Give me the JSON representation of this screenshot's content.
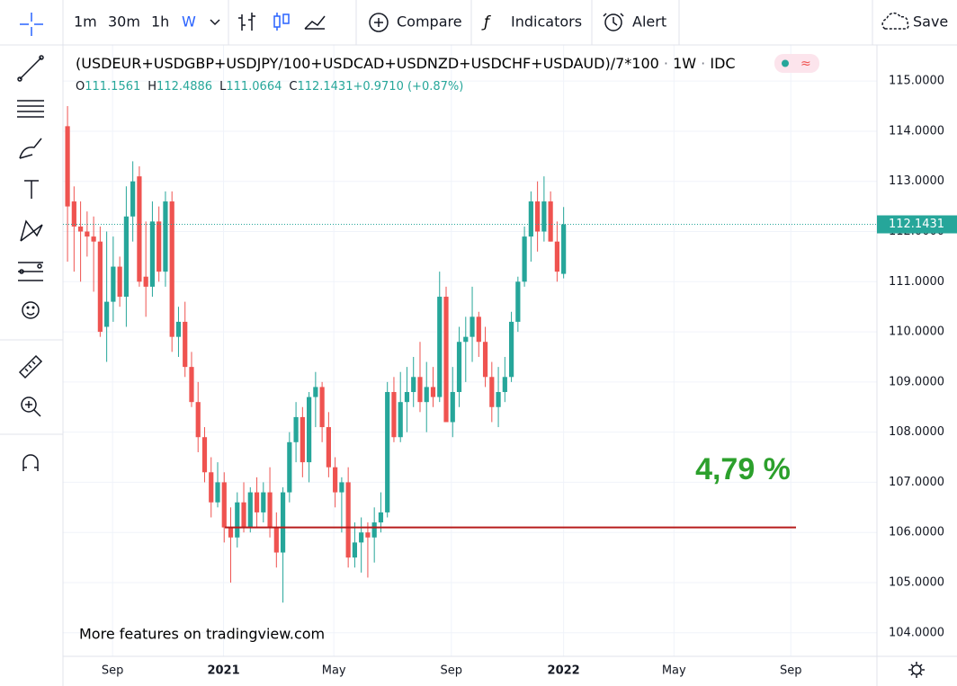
{
  "toolbar": {
    "intervals": [
      "1m",
      "30m",
      "1h",
      "W"
    ],
    "compare": "Compare",
    "indicators": "Indicators",
    "alert": "Alert",
    "save": "Save"
  },
  "watermark": "More features on tradingview.com",
  "chart_data": {
    "type": "candlestick",
    "title": "(USDEUR+USDGBP+USDJPY/100+USDCAD+USDNZD+USDCHF+USDAUD)/7*100",
    "interval": "1W",
    "source": "IDC",
    "legend": [
      {
        "key": "O",
        "text": "111.1561"
      },
      {
        "key": "H",
        "text": "112.4886"
      },
      {
        "key": "L",
        "text": "111.0664"
      },
      {
        "key": "C",
        "text": "112.1431"
      },
      {
        "key": "",
        "text": "+0.9710 (+0.87%)"
      }
    ],
    "up_color": "#26a69a",
    "down_color": "#ef5350",
    "open": [
      114.1,
      112.6,
      112.1,
      112.0,
      111.9,
      111.8,
      110.1,
      110.6,
      111.3,
      110.7,
      112.3,
      113.1,
      111.1,
      110.9,
      112.2,
      111.2,
      112.6,
      109.9,
      110.2,
      109.3,
      108.6,
      107.9,
      107.2,
      106.6,
      107.0,
      106.1,
      105.9,
      106.6,
      106.1,
      106.8,
      106.4,
      106.8,
      106.1,
      105.6,
      106.8,
      107.8,
      108.3,
      107.4,
      108.7,
      108.9,
      108.1,
      107.3,
      106.8,
      107.0,
      105.5,
      105.8,
      106.0,
      105.9,
      106.2,
      106.4,
      108.8,
      107.9,
      108.6,
      108.8,
      109.1,
      108.6,
      108.9,
      108.7,
      110.7,
      108.2,
      108.8,
      109.8,
      109.9,
      110.3,
      109.8,
      109.1,
      108.5,
      108.8,
      109.1,
      110.2,
      111.0,
      111.9,
      112.6,
      112.0,
      112.6,
      111.8,
      111.1561
    ],
    "high": [
      114.5,
      112.9,
      112.6,
      112.4,
      112.3,
      112.1,
      112.0,
      111.9,
      111.5,
      112.9,
      113.4,
      113.3,
      112.2,
      112.6,
      112.5,
      112.8,
      112.8,
      110.5,
      110.6,
      109.6,
      109.0,
      108.1,
      107.5,
      107.4,
      107.2,
      106.5,
      106.8,
      107.0,
      106.9,
      107.1,
      107.0,
      107.3,
      106.4,
      106.9,
      108.0,
      108.6,
      108.5,
      108.8,
      109.2,
      109.0,
      108.4,
      107.5,
      107.1,
      107.3,
      106.2,
      106.3,
      106.2,
      106.5,
      106.8,
      109.0,
      109.1,
      109.2,
      109.3,
      109.5,
      109.8,
      109.4,
      109.3,
      111.2,
      110.9,
      109.3,
      110.1,
      110.3,
      110.9,
      110.4,
      110.1,
      109.4,
      109.3,
      109.5,
      110.4,
      111.1,
      112.1,
      112.8,
      113.0,
      113.1,
      112.8,
      112.2,
      112.4886
    ],
    "low": [
      111.4,
      111.2,
      111.0,
      111.5,
      110.8,
      109.9,
      109.4,
      110.2,
      110.5,
      110.1,
      111.8,
      110.9,
      110.3,
      110.7,
      111.0,
      110.9,
      109.6,
      109.5,
      109.1,
      108.5,
      107.6,
      107.0,
      106.3,
      106.5,
      105.8,
      105.0,
      105.7,
      106.0,
      106.0,
      106.1,
      106.2,
      105.9,
      105.3,
      104.6,
      106.6,
      107.4,
      107.1,
      107.0,
      108.1,
      107.8,
      107.1,
      106.5,
      106.0,
      105.3,
      105.3,
      105.2,
      105.1,
      105.4,
      106.0,
      106.3,
      107.8,
      107.8,
      108.0,
      108.5,
      108.4,
      108.0,
      108.5,
      108.6,
      108.2,
      107.9,
      108.5,
      109.0,
      109.4,
      109.5,
      108.9,
      108.2,
      108.1,
      108.6,
      109.0,
      110.0,
      110.9,
      111.4,
      111.6,
      111.8,
      111.8,
      111.0,
      111.0664
    ],
    "close": [
      112.5,
      112.1,
      112.0,
      111.9,
      111.8,
      110.0,
      110.6,
      111.3,
      110.7,
      112.3,
      113.0,
      111.0,
      110.9,
      112.2,
      111.2,
      112.6,
      109.9,
      110.2,
      109.3,
      108.6,
      107.9,
      107.2,
      106.6,
      107.0,
      106.1,
      105.9,
      106.6,
      106.1,
      106.8,
      106.4,
      106.8,
      106.1,
      105.6,
      106.8,
      107.8,
      108.3,
      107.4,
      108.7,
      108.9,
      108.1,
      107.3,
      106.8,
      107.0,
      105.5,
      105.8,
      106.0,
      105.9,
      106.2,
      106.4,
      108.8,
      107.9,
      108.6,
      108.8,
      109.1,
      108.6,
      108.9,
      108.7,
      110.7,
      108.2,
      108.8,
      109.8,
      109.9,
      110.3,
      109.8,
      109.1,
      108.5,
      108.8,
      109.1,
      110.2,
      111.0,
      111.9,
      112.6,
      112.0,
      112.6,
      111.8,
      111.2,
      112.1431
    ],
    "xlim": [
      -0.7,
      124
    ],
    "xticks": [
      {
        "value": 6.9,
        "label": "Sep"
      },
      {
        "value": 23.9,
        "label": "2021"
      },
      {
        "value": 40.8,
        "label": "May"
      },
      {
        "value": 58.8,
        "label": "Sep"
      },
      {
        "value": 76,
        "label": "2022"
      },
      {
        "value": 92.9,
        "label": "May"
      },
      {
        "value": 110.8,
        "label": "Sep"
      }
    ],
    "ylim": [
      103.53,
      115.72
    ],
    "yticks": [
      {
        "value": 104,
        "label": "104.0000"
      },
      {
        "value": 105,
        "label": "105.0000"
      },
      {
        "value": 106,
        "label": "106.0000"
      },
      {
        "value": 107,
        "label": "107.0000"
      },
      {
        "value": 108,
        "label": "108.0000"
      },
      {
        "value": 109,
        "label": "109.0000"
      },
      {
        "value": 110,
        "label": "110.0000"
      },
      {
        "value": 111,
        "label": "111.0000"
      },
      {
        "value": 112,
        "label": "112.0000"
      },
      {
        "value": 113,
        "label": "113.0000"
      },
      {
        "value": 114,
        "label": "114.0000"
      },
      {
        "value": 115,
        "label": "115.0000"
      }
    ],
    "grid": true,
    "hline": {
      "value": 106.1,
      "x": [
        24.1,
        111.6
      ],
      "color": "#b71c1c"
    },
    "annotation": {
      "text": "4,79 %",
      "color": "#2ca02c"
    }
  }
}
